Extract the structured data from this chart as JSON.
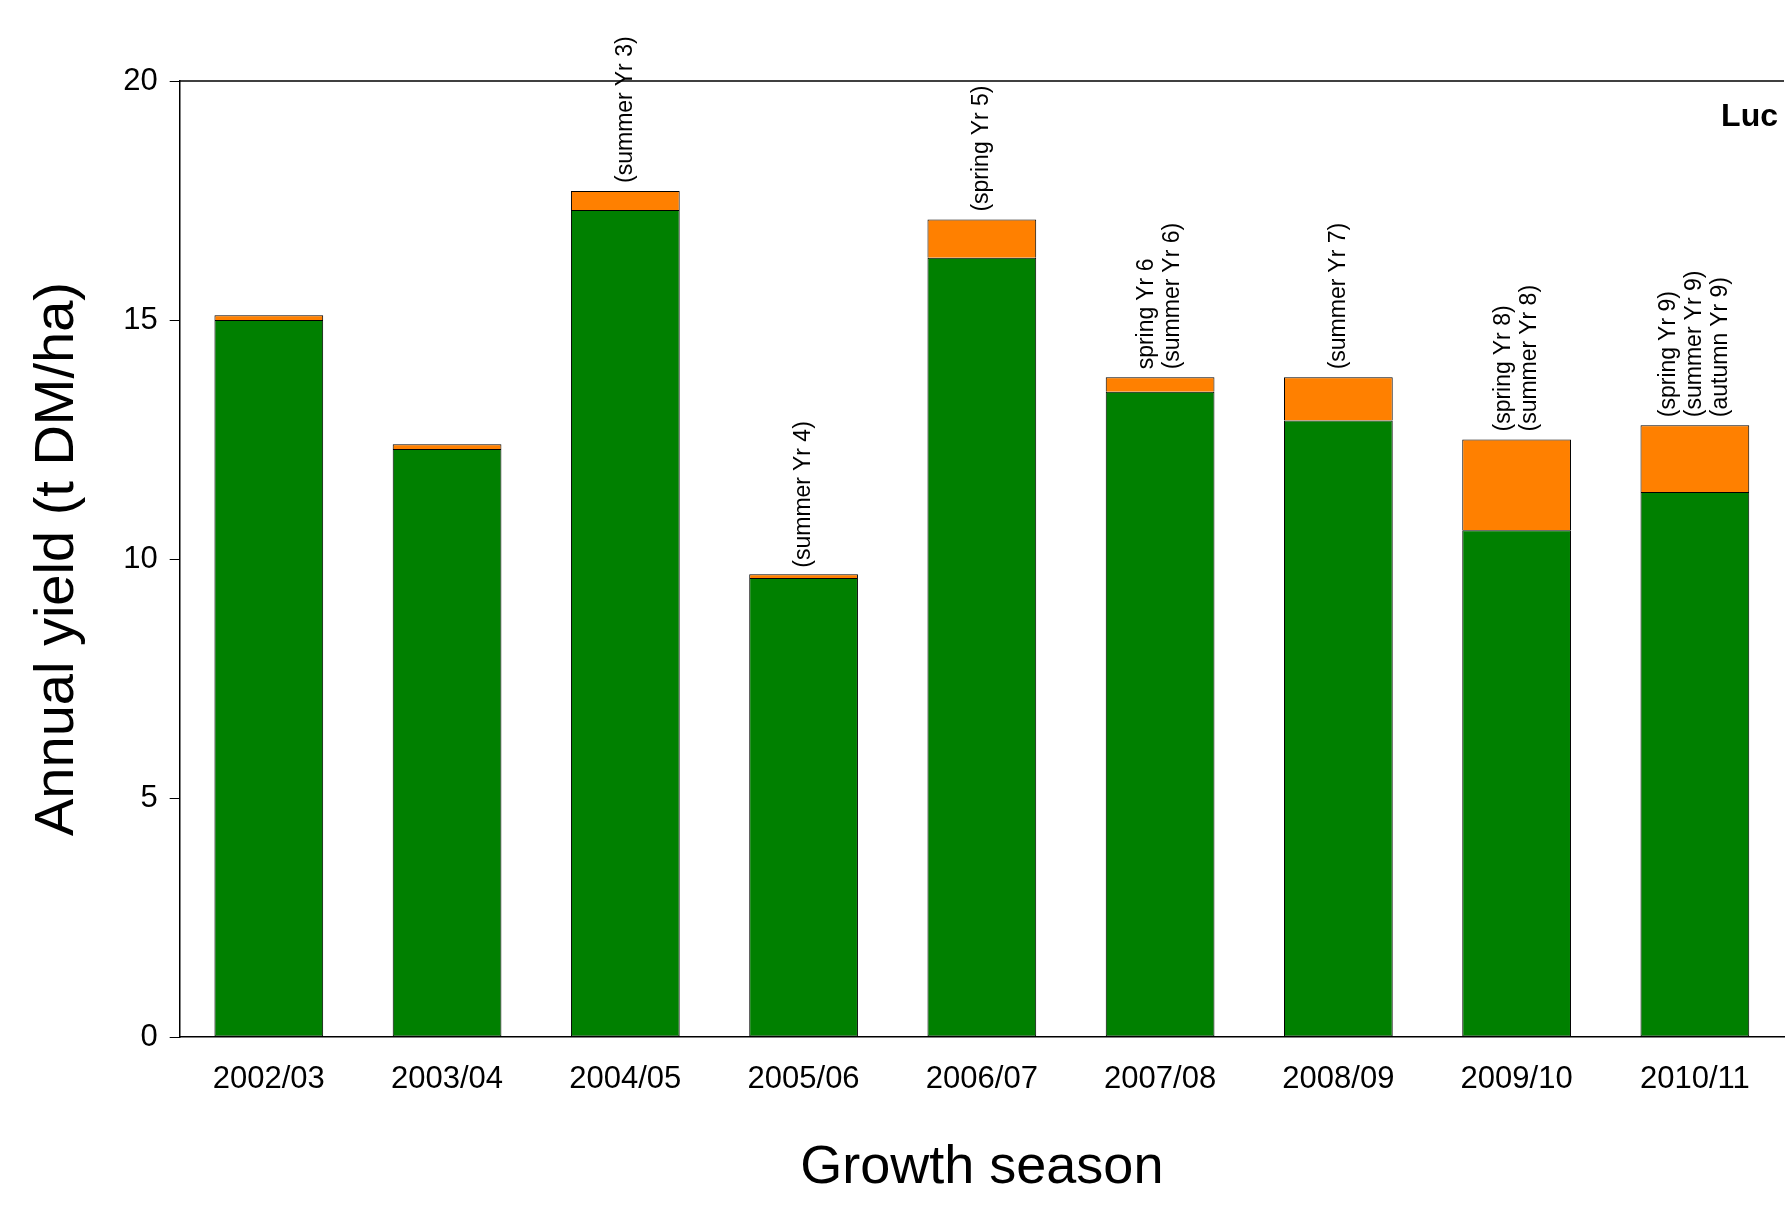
{
  "chart_data": {
    "type": "bar",
    "xlabel": "Growth season",
    "ylabel": "Annual yield (t DM/ha)",
    "stacked": true,
    "categories": [
      "2002/03",
      "2003/04",
      "2004/05",
      "2005/06",
      "2006/07",
      "2007/08",
      "2008/09",
      "2009/10",
      "2010/11"
    ],
    "series": [
      {
        "color": "#008000",
        "values": [
          15.0,
          12.3,
          17.3,
          9.6,
          16.3,
          13.5,
          12.9,
          10.6,
          11.4
        ]
      },
      {
        "color": "#ff8000",
        "values": [
          0.1,
          0.1,
          0.4,
          0.08,
          0.8,
          0.3,
          0.9,
          1.9,
          1.4
        ]
      }
    ],
    "ylim": [
      0,
      20
    ],
    "yticks": [
      0,
      5,
      10,
      15,
      20
    ],
    "grid": false,
    "legend": false,
    "annotations": [
      "Luc",
      {
        "text": "(summer Yr 3)",
        "x": "2004/05",
        "y": 17.7
      },
      {
        "text": "(summer Yr 4)",
        "x": "2005/06",
        "y": 9.65
      },
      {
        "text": "(spring Yr 5)",
        "x": "2006/07",
        "y": 17.1
      },
      {
        "text": "spring Yr 6\n(summer Yr 6)",
        "x": "2007/08",
        "y": 13.8
      },
      {
        "text": "(summer Yr 7)",
        "x": "2008/09",
        "y": 13.8
      },
      {
        "text": "(spring Yr 8)\n(summer Yr 8)",
        "x": "2009/10",
        "y": 12.5
      },
      {
        "text": "(spring Yr 9)\n(summer Yr 9)\n(autumn Yr 9)",
        "x": "2010/11",
        "y": 12.8
      }
    ]
  }
}
